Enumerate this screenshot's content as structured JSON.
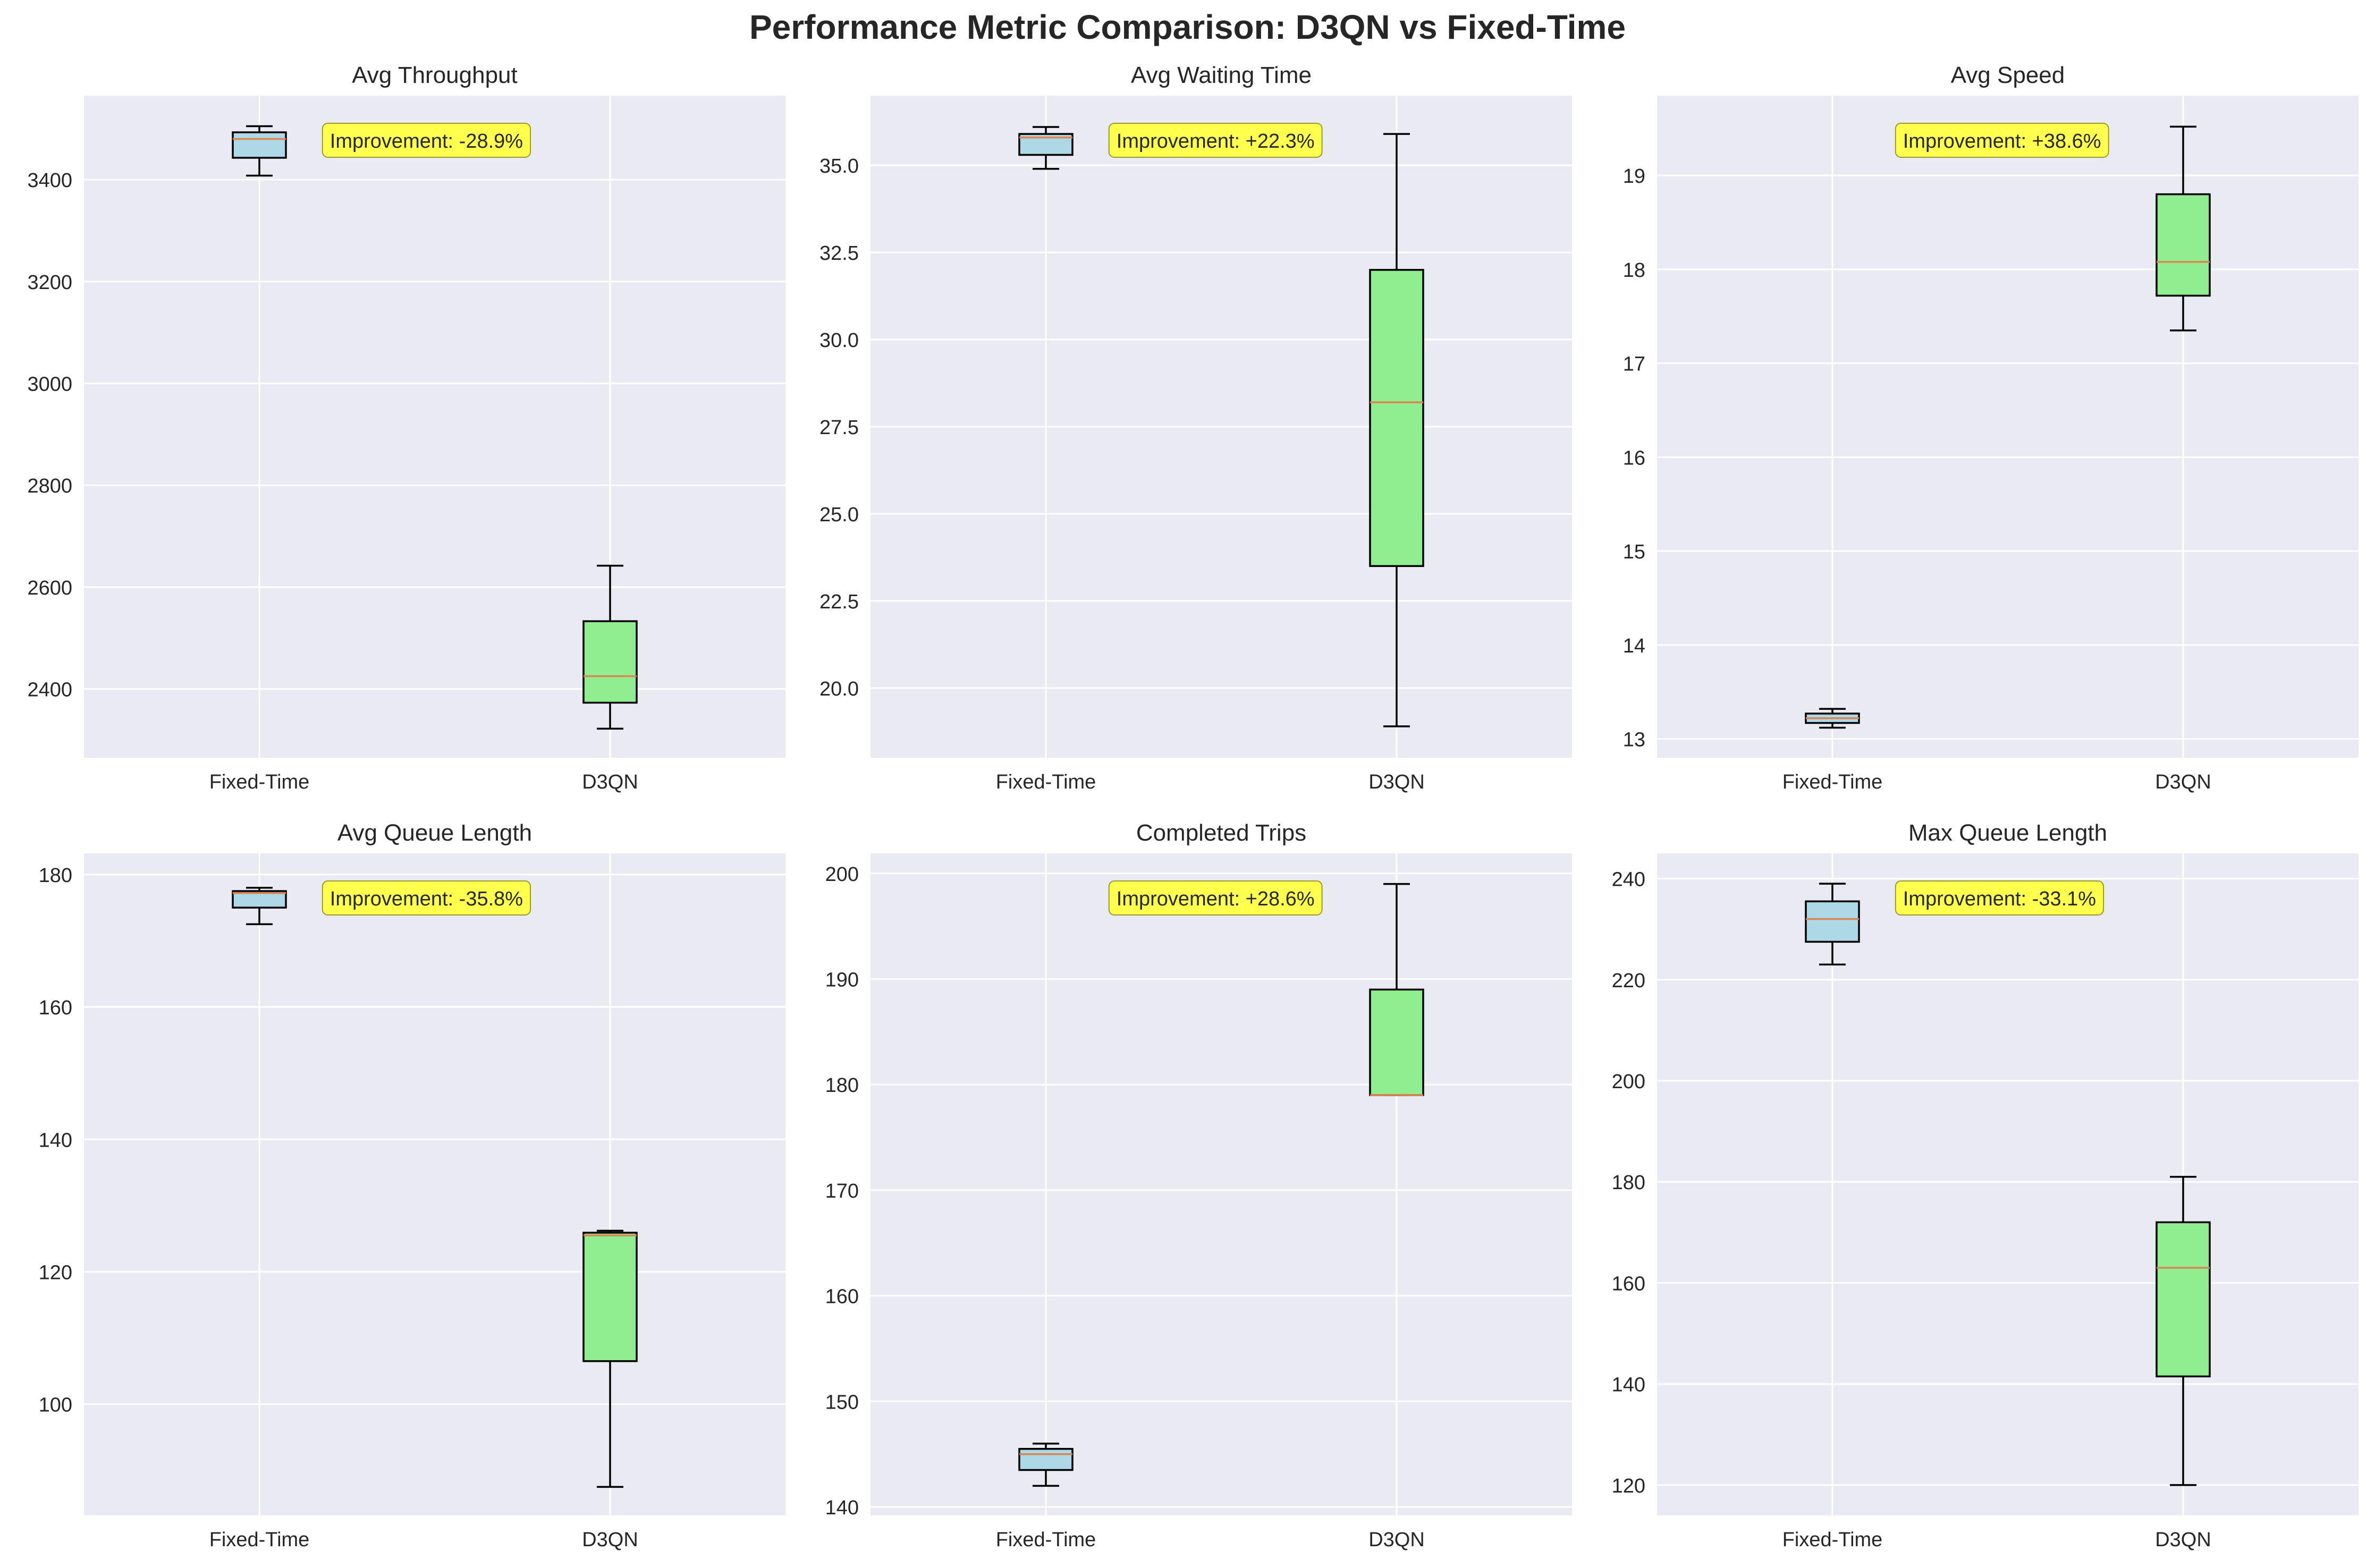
{
  "figure": {
    "title": "Performance Metric Comparison: D3QN vs Fixed-Time"
  },
  "colors": {
    "figure_background": "#ffffff",
    "axes_background": "#eaeaf2",
    "grid": "#ffffff",
    "fixed_time_box": "#add8e6",
    "d3qn_box": "#90ee90",
    "median": "#dd8452",
    "whisker": "#000000",
    "annotation_fill": "#ffff4d",
    "annotation_edge": "#999933",
    "text": "#262626"
  },
  "chart_data": [
    {
      "type": "box",
      "title": "Avg Throughput",
      "categories": [
        "Fixed-Time",
        "D3QN"
      ],
      "ylim": [
        2265,
        3565
      ],
      "yticks": [
        2400,
        2600,
        2800,
        3000,
        3200,
        3400
      ],
      "ytick_labels": [
        "2400",
        "2600",
        "2800",
        "3000",
        "3200",
        "3400"
      ],
      "grid": true,
      "annotation": "Improvement: -28.9%",
      "series": [
        {
          "category": "Fixed-Time",
          "whislo": 3408,
          "q1": 3443,
          "med": 3480,
          "q3": 3493,
          "whishi": 3505
        },
        {
          "category": "D3QN",
          "whislo": 2322,
          "q1": 2373,
          "med": 2425,
          "q3": 2533,
          "whishi": 2642
        }
      ]
    },
    {
      "type": "box",
      "title": "Avg Waiting Time",
      "categories": [
        "Fixed-Time",
        "D3QN"
      ],
      "ylim": [
        18.0,
        37.0
      ],
      "yticks": [
        20.0,
        22.5,
        25.0,
        27.5,
        30.0,
        32.5,
        35.0
      ],
      "ytick_labels": [
        "20.0",
        "22.5",
        "25.0",
        "27.5",
        "30.0",
        "32.5",
        "35.0"
      ],
      "grid": true,
      "annotation": "Improvement: +22.3%",
      "series": [
        {
          "category": "Fixed-Time",
          "whislo": 34.9,
          "q1": 35.3,
          "med": 35.8,
          "q3": 35.9,
          "whishi": 36.1
        },
        {
          "category": "D3QN",
          "whislo": 18.9,
          "q1": 23.5,
          "med": 28.2,
          "q3": 32.0,
          "whishi": 35.9
        }
      ]
    },
    {
      "type": "box",
      "title": "Avg Speed",
      "categories": [
        "Fixed-Time",
        "D3QN"
      ],
      "ylim": [
        12.8,
        19.85
      ],
      "yticks": [
        13,
        14,
        15,
        16,
        17,
        18,
        19
      ],
      "ytick_labels": [
        "13",
        "14",
        "15",
        "16",
        "17",
        "18",
        "19"
      ],
      "grid": true,
      "annotation": "Improvement: +38.6%",
      "series": [
        {
          "category": "Fixed-Time",
          "whislo": 13.12,
          "q1": 13.17,
          "med": 13.22,
          "q3": 13.27,
          "whishi": 13.32
        },
        {
          "category": "D3QN",
          "whislo": 17.35,
          "q1": 17.72,
          "med": 18.08,
          "q3": 18.8,
          "whishi": 19.52
        }
      ]
    },
    {
      "type": "box",
      "title": "Avg Queue Length",
      "categories": [
        "Fixed-Time",
        "D3QN"
      ],
      "ylim": [
        83.2,
        183.2
      ],
      "yticks": [
        100,
        120,
        140,
        160,
        180
      ],
      "ytick_labels": [
        "100",
        "120",
        "140",
        "160",
        "180"
      ],
      "grid": true,
      "annotation": "Improvement: -35.8%",
      "series": [
        {
          "category": "Fixed-Time",
          "whislo": 172.5,
          "q1": 175.0,
          "med": 177.2,
          "q3": 177.5,
          "whishi": 178.0
        },
        {
          "category": "D3QN",
          "whislo": 87.5,
          "q1": 106.5,
          "med": 125.5,
          "q3": 125.9,
          "whishi": 126.2
        }
      ]
    },
    {
      "type": "box",
      "title": "Completed Trips",
      "categories": [
        "Fixed-Time",
        "D3QN"
      ],
      "ylim": [
        139.2,
        201.9
      ],
      "yticks": [
        140,
        150,
        160,
        170,
        180,
        190,
        200
      ],
      "ytick_labels": [
        "140",
        "150",
        "160",
        "170",
        "180",
        "190",
        "200"
      ],
      "grid": true,
      "annotation": "Improvement: +28.6%",
      "series": [
        {
          "category": "Fixed-Time",
          "whislo": 142,
          "q1": 143.5,
          "med": 145,
          "q3": 145.5,
          "whishi": 146
        },
        {
          "category": "D3QN",
          "whislo": 179,
          "q1": 179,
          "med": 179,
          "q3": 189,
          "whishi": 199
        }
      ]
    },
    {
      "type": "box",
      "title": "Max Queue Length",
      "categories": [
        "Fixed-Time",
        "D3QN"
      ],
      "ylim": [
        114,
        245
      ],
      "yticks": [
        120,
        140,
        160,
        180,
        200,
        220,
        240
      ],
      "ytick_labels": [
        "120",
        "140",
        "160",
        "180",
        "200",
        "220",
        "240"
      ],
      "grid": true,
      "annotation": "Improvement: -33.1%",
      "series": [
        {
          "category": "Fixed-Time",
          "whislo": 223,
          "q1": 227.5,
          "med": 232,
          "q3": 235.5,
          "whishi": 239
        },
        {
          "category": "D3QN",
          "whislo": 120,
          "q1": 141.5,
          "med": 163,
          "q3": 172,
          "whishi": 181
        }
      ]
    }
  ]
}
